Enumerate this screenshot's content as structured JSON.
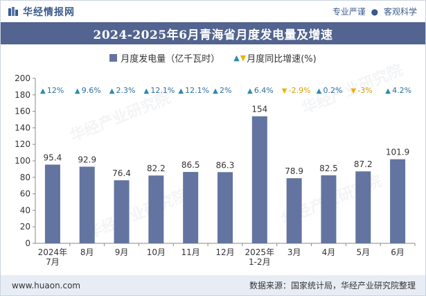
{
  "header": {
    "brand_name": "华经情报网",
    "tagline_left": "专业严谨",
    "tagline_right": "客观科学"
  },
  "title": "2024-2025年6月青海省月度发电量及增速",
  "watermark_text": "华经产业研究院",
  "footer": {
    "website": "www.huaon.com",
    "source": "数据来源：国家统计局，华经产业研究院整理"
  },
  "colors": {
    "bar": "#6374a0",
    "up_marker": "#2b8ab1",
    "down_marker": "#e9b400",
    "title_bg": "#52648f"
  },
  "chart_data": {
    "type": "bar",
    "categories": [
      "2024年\n7月",
      "8月",
      "9月",
      "10月",
      "11月",
      "12月",
      "2025年\n1-2月",
      "3月",
      "4月",
      "5月",
      "6月"
    ],
    "series": [
      {
        "name": "月度发电量（亿千瓦时）",
        "values": [
          95.4,
          92.9,
          76.4,
          82.2,
          86.5,
          86.3,
          154,
          78.9,
          82.5,
          87.2,
          101.9
        ],
        "labels": [
          "95.4",
          "92.9",
          "76.4",
          "82.2",
          "86.5",
          "86.3",
          "154",
          "78.9",
          "82.5",
          "87.2",
          "101.9"
        ]
      },
      {
        "name": "月度同比增速(%)",
        "values": [
          12,
          9.6,
          2.3,
          12.1,
          12.1,
          2,
          6.4,
          -2.9,
          0.2,
          -3,
          4.2
        ],
        "labels": [
          "12%",
          "9.6%",
          "2.3%",
          "12.1%",
          "12.1%",
          "2%",
          "6.4%",
          "-2.9%",
          "0.2%",
          "-3%",
          "4.2%"
        ]
      }
    ],
    "ylim": [
      0,
      200
    ],
    "yticks": [
      0,
      20,
      40,
      60,
      80,
      100,
      120,
      140,
      160,
      180,
      200
    ],
    "legend_position": "top-center",
    "grid": false
  }
}
